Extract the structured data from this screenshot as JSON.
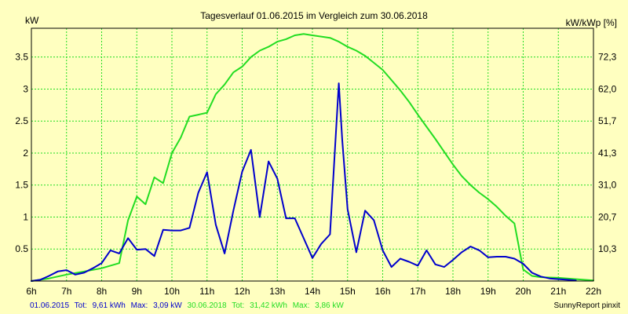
{
  "colors": {
    "background": "#FFFFC0",
    "plot_background": "#FFFFC0",
    "grid": "#22DD22",
    "axis": "#000000",
    "series_2015": "#0000CC",
    "series_2018": "#22DD22"
  },
  "chart_data": {
    "type": "line",
    "title": "Tagesverlauf 01.06.2015 im Vergleich zum 30.06.2018",
    "ylabel_left": "kW",
    "ylabel_right": "kW/kWp [%]",
    "xlim": [
      6,
      22
    ],
    "ylim": [
      0,
      3.95
    ],
    "x_ticks": [
      {
        "value": 6,
        "label": "6h"
      },
      {
        "value": 7,
        "label": "7h"
      },
      {
        "value": 8,
        "label": "8h"
      },
      {
        "value": 9,
        "label": "9h"
      },
      {
        "value": 10,
        "label": "10h"
      },
      {
        "value": 11,
        "label": "11h"
      },
      {
        "value": 12,
        "label": "12h"
      },
      {
        "value": 13,
        "label": "13h"
      },
      {
        "value": 14,
        "label": "14h"
      },
      {
        "value": 15,
        "label": "15h"
      },
      {
        "value": 16,
        "label": "16h"
      },
      {
        "value": 17,
        "label": "17h"
      },
      {
        "value": 18,
        "label": "18h"
      },
      {
        "value": 19,
        "label": "19h"
      },
      {
        "value": 20,
        "label": "20h"
      },
      {
        "value": 21,
        "label": "21h"
      },
      {
        "value": 22,
        "label": "22h"
      }
    ],
    "y_ticks_left": [
      {
        "value": 0.5,
        "label": "0.5"
      },
      {
        "value": 1,
        "label": "1"
      },
      {
        "value": 1.5,
        "label": "1.5"
      },
      {
        "value": 2,
        "label": "2"
      },
      {
        "value": 2.5,
        "label": "2.5"
      },
      {
        "value": 3,
        "label": "3"
      },
      {
        "value": 3.5,
        "label": "3.5"
      }
    ],
    "y_ticks_right": [
      {
        "value": 0.5,
        "label": "10,3"
      },
      {
        "value": 1,
        "label": "20,7"
      },
      {
        "value": 1.5,
        "label": "31,0"
      },
      {
        "value": 2,
        "label": "41,3"
      },
      {
        "value": 2.5,
        "label": "51,7"
      },
      {
        "value": 3,
        "label": "62,0"
      },
      {
        "value": 3.5,
        "label": "72,3"
      }
    ],
    "grid": true,
    "series": [
      {
        "date": "01.06.2015",
        "total_label": "Tot:",
        "total": "9,61 kWh",
        "max_label": "Max:",
        "max": "3,09 kW",
        "color": "#0000CC",
        "x": [
          6,
          6.25,
          6.5,
          6.75,
          7,
          7.25,
          7.5,
          7.75,
          8,
          8.25,
          8.5,
          8.75,
          9,
          9.25,
          9.5,
          9.75,
          10,
          10.25,
          10.5,
          10.75,
          11,
          11.25,
          11.5,
          11.75,
          12,
          12.25,
          12.5,
          12.75,
          13,
          13.25,
          13.5,
          13.75,
          14,
          14.25,
          14.5,
          14.75,
          14.85,
          15,
          15.25,
          15.5,
          15.75,
          16,
          16.25,
          16.5,
          16.75,
          17,
          17.25,
          17.5,
          17.75,
          18,
          18.25,
          18.5,
          18.75,
          19,
          19.25,
          19.5,
          19.75,
          20,
          20.25,
          20.5,
          20.75,
          21,
          21.25,
          21.5
        ],
        "y": [
          0.0,
          0.02,
          0.08,
          0.15,
          0.17,
          0.1,
          0.13,
          0.2,
          0.28,
          0.48,
          0.43,
          0.67,
          0.49,
          0.5,
          0.39,
          0.8,
          0.79,
          0.79,
          0.83,
          1.38,
          1.7,
          0.88,
          0.43,
          1.1,
          1.71,
          2.05,
          1.0,
          1.87,
          1.6,
          0.98,
          0.98,
          0.67,
          0.36,
          0.58,
          0.73,
          3.09,
          2.2,
          1.12,
          0.45,
          1.1,
          0.95,
          0.48,
          0.22,
          0.35,
          0.3,
          0.24,
          0.48,
          0.26,
          0.22,
          0.33,
          0.45,
          0.54,
          0.48,
          0.37,
          0.38,
          0.38,
          0.35,
          0.27,
          0.13,
          0.07,
          0.04,
          0.03,
          0.02,
          0.01
        ]
      },
      {
        "date": "30.06.2018",
        "total_label": "Tot:",
        "total": "31,42 kWh",
        "max_label": "Max:",
        "max": "3,86 kW",
        "color": "#22DD22",
        "x": [
          6,
          6.5,
          7,
          7.5,
          8,
          8.5,
          8.75,
          9,
          9.25,
          9.5,
          9.75,
          10,
          10.25,
          10.5,
          10.75,
          11,
          11.25,
          11.5,
          11.75,
          12,
          12.25,
          12.5,
          12.75,
          13,
          13.25,
          13.5,
          13.75,
          14,
          14.25,
          14.5,
          14.75,
          15,
          15.25,
          15.5,
          15.75,
          16,
          16.25,
          16.5,
          16.75,
          17,
          17.25,
          17.5,
          17.75,
          18,
          18.25,
          18.5,
          18.75,
          19,
          19.25,
          19.5,
          19.75,
          20,
          20.25,
          20.5,
          21,
          21.5,
          22
        ],
        "y": [
          0.0,
          0.04,
          0.1,
          0.15,
          0.2,
          0.28,
          0.95,
          1.32,
          1.2,
          1.62,
          1.53,
          2.0,
          2.24,
          2.57,
          2.6,
          2.63,
          2.92,
          3.07,
          3.26,
          3.35,
          3.5,
          3.6,
          3.66,
          3.74,
          3.78,
          3.84,
          3.86,
          3.84,
          3.82,
          3.8,
          3.74,
          3.66,
          3.6,
          3.52,
          3.41,
          3.3,
          3.14,
          2.98,
          2.8,
          2.6,
          2.41,
          2.22,
          2.02,
          1.82,
          1.64,
          1.5,
          1.38,
          1.28,
          1.16,
          1.02,
          0.9,
          0.18,
          0.08,
          0.06,
          0.05,
          0.03,
          0.01
        ]
      }
    ]
  },
  "footer": {
    "legend_2015_date": "01.06.2015",
    "legend_2015_total_label": "Tot:",
    "legend_2015_total": "9,61 kWh",
    "legend_2015_max_label": "Max:",
    "legend_2015_max": "3,09 kW",
    "legend_2018_date": "30.06.2018",
    "legend_2018_total_label": "Tot:",
    "legend_2018_total": "31,42 kWh",
    "legend_2018_max_label": "Max:",
    "legend_2018_max": "3,86 kW",
    "brand": "SunnyReport pinxit"
  }
}
